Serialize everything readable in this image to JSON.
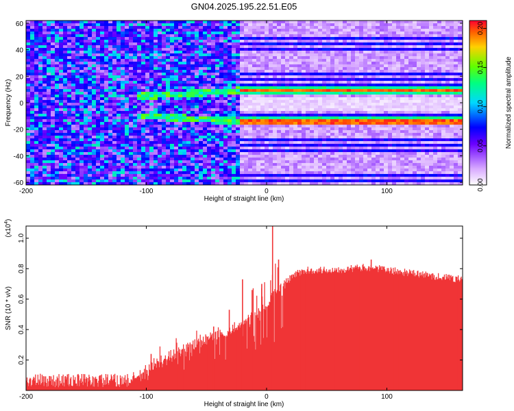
{
  "title": "GN04.2025.195.22.51.E05",
  "chart_data": [
    {
      "type": "heatmap",
      "xlabel": "Height of straight line (km)",
      "ylabel": "Frequency (Hz)",
      "xlim": [
        -200,
        163
      ],
      "ylim": [
        -62,
        62
      ],
      "xticks": [
        -200,
        -100,
        0,
        100
      ],
      "yticks": [
        -60,
        -40,
        -20,
        0,
        20,
        40,
        60
      ],
      "colorbar": {
        "label": "Normalized spectral amplitude",
        "range": [
          0,
          0.21
        ],
        "ticks": [
          0,
          0.05,
          0.1,
          0.15,
          0.2
        ],
        "tick_labels": [
          "0.00",
          "0.05",
          "0.10",
          "0.15",
          "0.20"
        ]
      },
      "features": {
        "main_lines_hz": [
          10,
          -13
        ],
        "harmonic_spacing_hz": 4.5,
        "transition_height_km": -25,
        "peak_amplitude": 0.21
      }
    },
    {
      "type": "bar",
      "xlabel": "Height of straight line (km)",
      "ylabel": "SNR (10 * v/v)",
      "scale_label": "(x10",
      "scale_exp": "4",
      "scale_close": ")",
      "xlim": [
        -200,
        163
      ],
      "ylim": [
        0,
        1.08
      ],
      "xticks": [
        -200,
        -100,
        0,
        100
      ],
      "yticks": [
        0.2,
        0.4,
        0.6,
        0.8,
        1.0
      ],
      "ytick_labels": [
        "0.2",
        "0.4",
        "0.6",
        "0.8",
        "1.0"
      ],
      "color": "#f03436",
      "profile": [
        [
          -200,
          0.04
        ],
        [
          -150,
          0.04
        ],
        [
          -115,
          0.04
        ],
        [
          -105,
          0.07
        ],
        [
          -95,
          0.14
        ],
        [
          -80,
          0.2
        ],
        [
          -60,
          0.27
        ],
        [
          -40,
          0.35
        ],
        [
          -25,
          0.4
        ],
        [
          -15,
          0.47
        ],
        [
          -5,
          0.52
        ],
        [
          0,
          0.55
        ],
        [
          5,
          0.62
        ],
        [
          15,
          0.7
        ],
        [
          25,
          0.76
        ],
        [
          35,
          0.78
        ],
        [
          50,
          0.78
        ],
        [
          70,
          0.79
        ],
        [
          85,
          0.8
        ],
        [
          100,
          0.78
        ],
        [
          120,
          0.76
        ],
        [
          140,
          0.74
        ],
        [
          163,
          0.72
        ]
      ],
      "spikes": [
        [
          -96,
          0.24
        ],
        [
          -70,
          0.27
        ],
        [
          -57,
          0.33
        ],
        [
          -44,
          0.42
        ],
        [
          -31,
          0.53
        ],
        [
          -20,
          0.73
        ],
        [
          -12,
          0.66
        ],
        [
          -4,
          0.7
        ],
        [
          5,
          1.08
        ],
        [
          10,
          0.86
        ],
        [
          87,
          0.86
        ]
      ]
    }
  ]
}
